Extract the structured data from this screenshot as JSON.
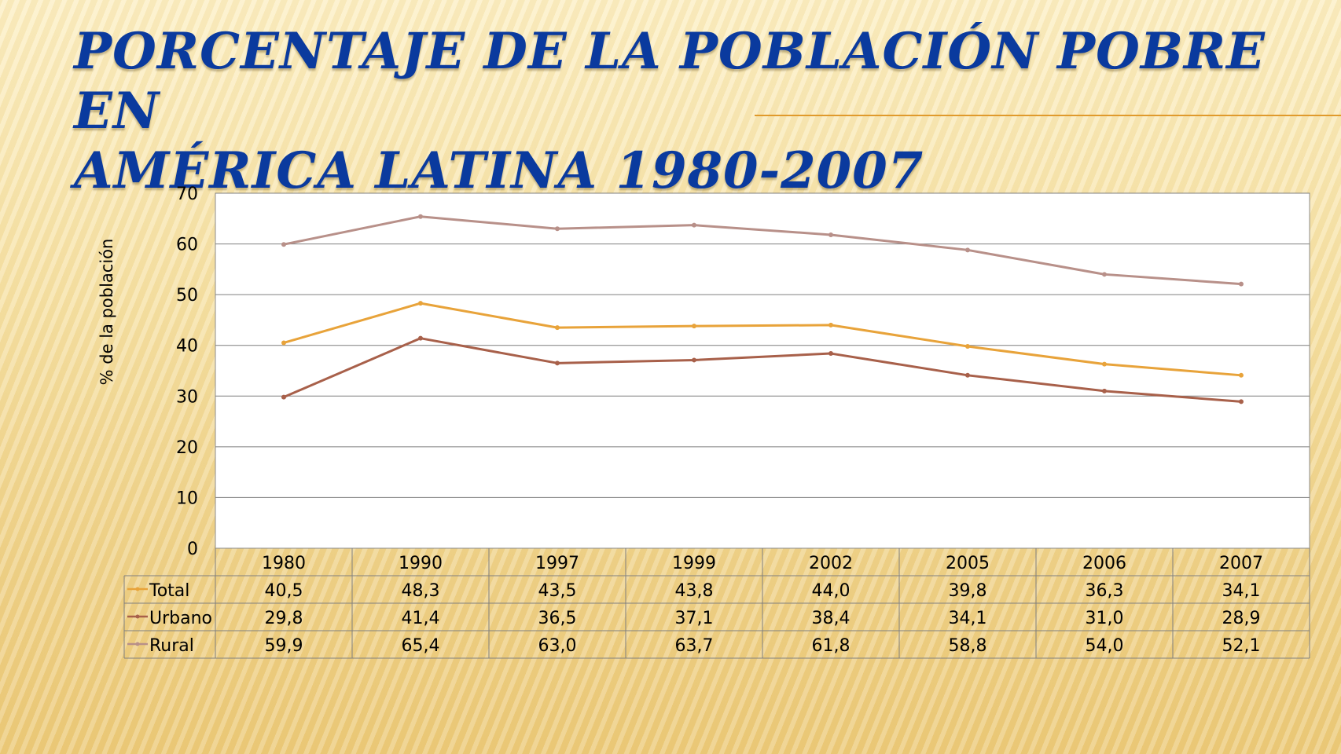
{
  "slide": {
    "title_line1": "PORCENTAJE DE LA POBLACIÓN POBRE EN",
    "title_line2": "AMÉRICA LATINA 1980-2007"
  },
  "colors": {
    "title": "#0a3a9e",
    "accent_rule": "#e09a2c",
    "Total": "#e8a33a",
    "Urbano": "#a8604a",
    "Rural": "#b89089",
    "grid": "#7f7f7f"
  },
  "chart_data": {
    "type": "line",
    "title": "",
    "xlabel": "",
    "ylabel": "%  de la población",
    "ylim": [
      0,
      70
    ],
    "yticks": [
      0,
      10,
      20,
      30,
      40,
      50,
      60,
      70
    ],
    "categories": [
      "1980",
      "1990",
      "1997",
      "1999",
      "2002",
      "2005",
      "2006",
      "2007"
    ],
    "grid": true,
    "legend": "data-table",
    "series": [
      {
        "name": "Total",
        "values": [
          40.5,
          48.3,
          43.5,
          43.8,
          44.0,
          39.8,
          36.3,
          34.1
        ],
        "labels": [
          "40,5",
          "48,3",
          "43,5",
          "43,8",
          "44,0",
          "39,8",
          "36,3",
          "34,1"
        ]
      },
      {
        "name": "Urbano",
        "values": [
          29.8,
          41.4,
          36.5,
          37.1,
          38.4,
          34.1,
          31.0,
          28.9
        ],
        "labels": [
          "29,8",
          "41,4",
          "36,5",
          "37,1",
          "38,4",
          "34,1",
          "31,0",
          "28,9"
        ]
      },
      {
        "name": "Rural",
        "values": [
          59.9,
          65.4,
          63.0,
          63.7,
          61.8,
          58.8,
          54.0,
          52.1
        ],
        "labels": [
          "59,9",
          "65,4",
          "63,0",
          "63,7",
          "61,8",
          "58,8",
          "54,0",
          "52,1"
        ]
      }
    ]
  }
}
